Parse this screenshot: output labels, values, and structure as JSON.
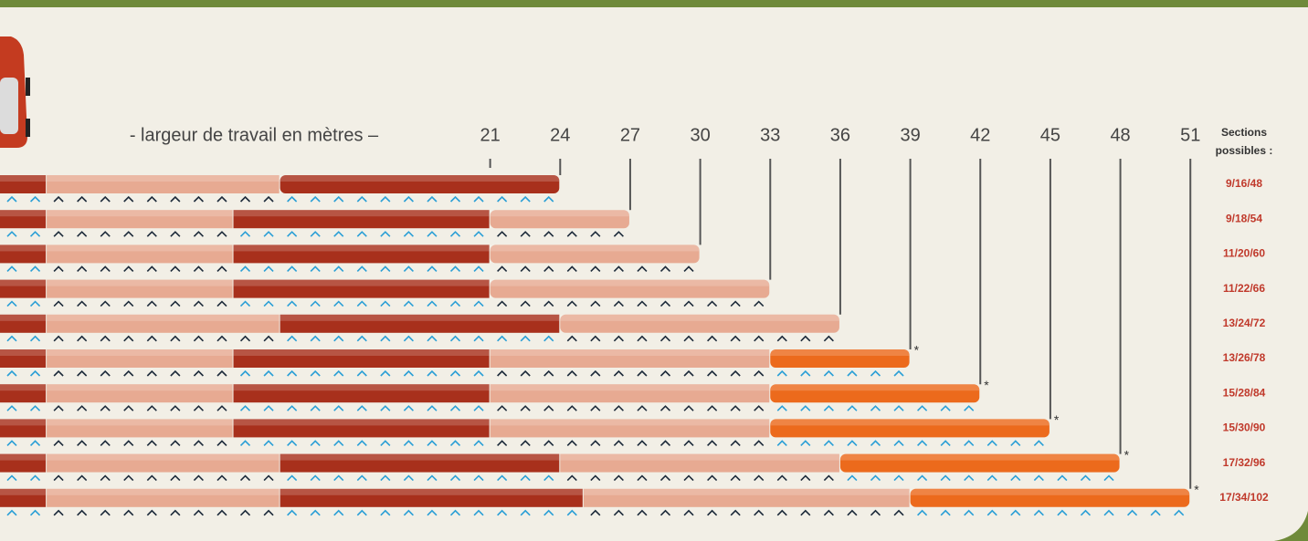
{
  "chart_data": {
    "type": "segmented-bar",
    "x_label": "- largeur de travail en mètres –",
    "xlim": [
      0,
      56
    ],
    "xticks": [
      21,
      24,
      27,
      30,
      33,
      36,
      39,
      42,
      45,
      48,
      51
    ],
    "sections_header": [
      "Sections",
      "possibles :"
    ],
    "segment_colors": [
      "#a8301c",
      "#e7aa92",
      "#a8301c",
      "#e7aa92",
      "#ec6a1c"
    ],
    "rows": [
      {
        "width": 24,
        "sections": "9/16/48",
        "segments": [
          2,
          10,
          12
        ]
      },
      {
        "width": 27,
        "sections": "9/18/54",
        "segments": [
          2,
          8,
          11,
          6
        ]
      },
      {
        "width": 30,
        "sections": "11/20/60",
        "segments": [
          2,
          8,
          11,
          9
        ]
      },
      {
        "width": 33,
        "sections": "11/22/66",
        "segments": [
          2,
          8,
          11,
          12
        ]
      },
      {
        "width": 36,
        "sections": "13/24/72",
        "segments": [
          2,
          10,
          12,
          12
        ]
      },
      {
        "width": 39,
        "sections": "13/26/78",
        "segments": [
          2,
          8,
          11,
          12,
          6
        ],
        "mark": "*"
      },
      {
        "width": 42,
        "sections": "15/28/84",
        "segments": [
          2,
          8,
          11,
          12,
          9
        ],
        "mark": "*"
      },
      {
        "width": 45,
        "sections": "15/30/90",
        "segments": [
          2,
          8,
          11,
          12,
          12
        ],
        "mark": "*"
      },
      {
        "width": 48,
        "sections": "17/32/96",
        "segments": [
          2,
          10,
          12,
          12,
          12
        ],
        "mark": "*"
      },
      {
        "width": 51,
        "sections": "17/34/102",
        "segments": [
          2,
          10,
          13,
          14,
          12
        ],
        "mark": "*"
      }
    ]
  }
}
